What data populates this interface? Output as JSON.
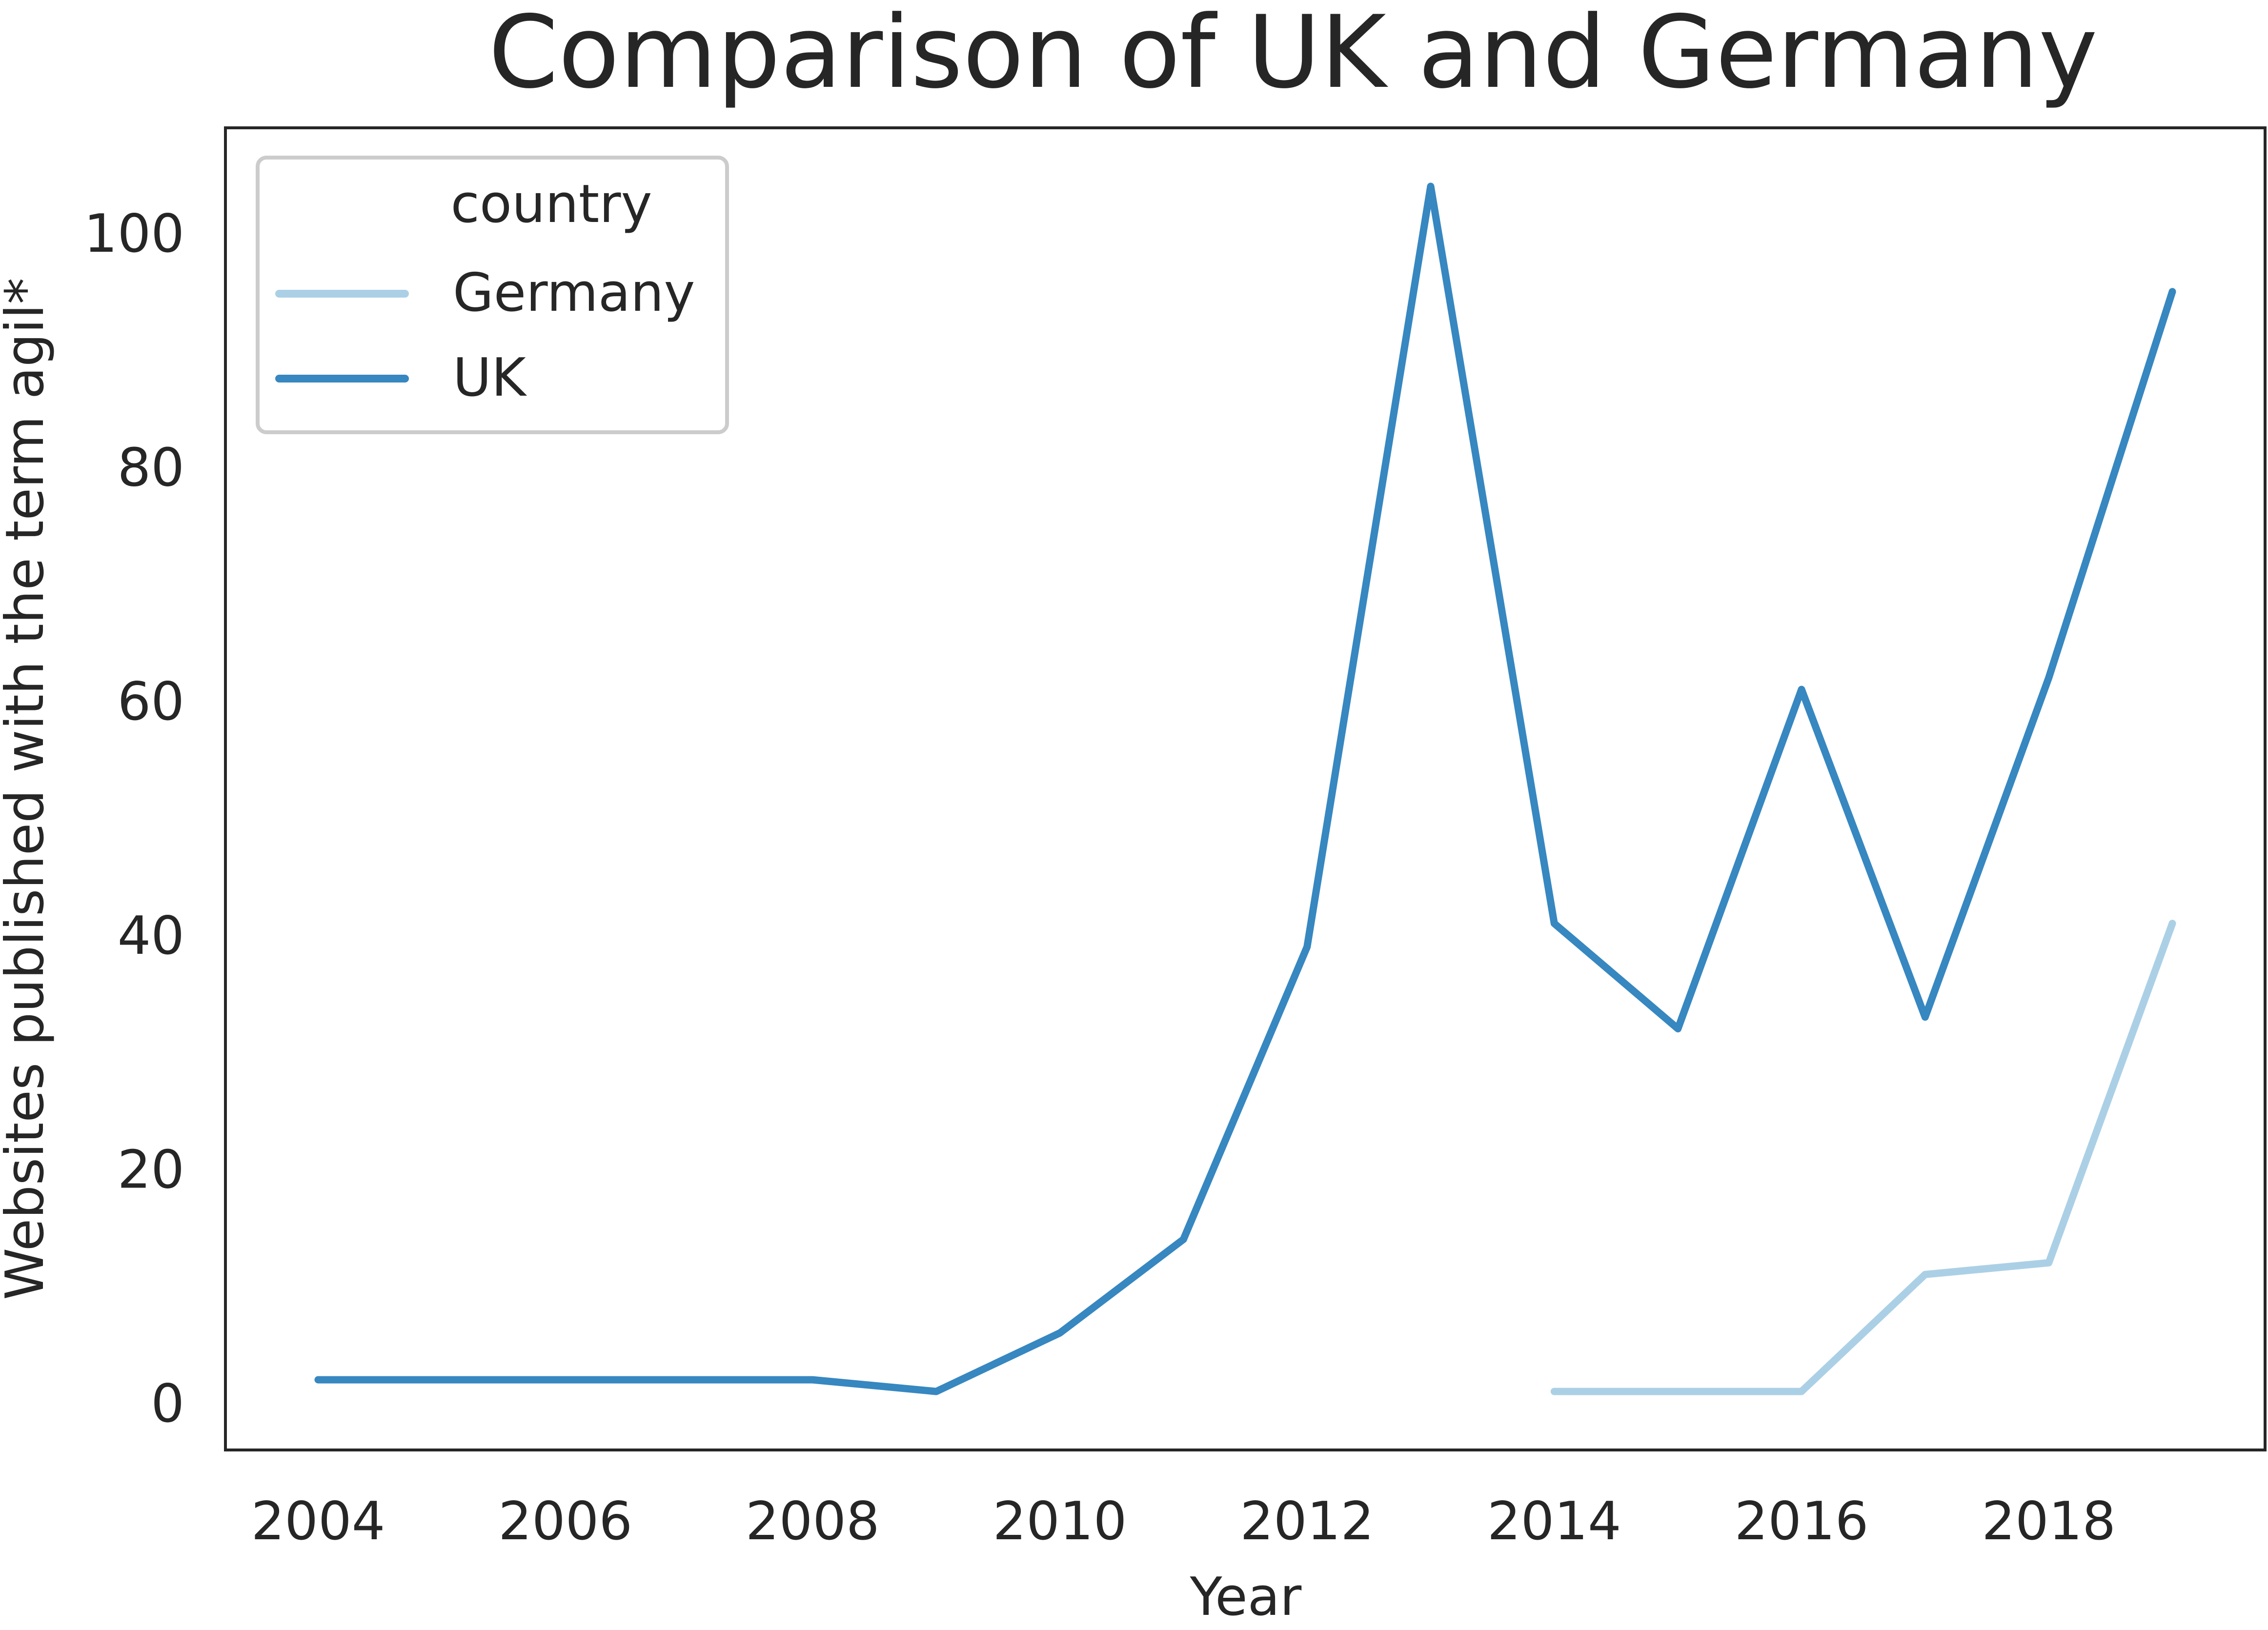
{
  "chart_data": {
    "type": "line",
    "title": "Comparison of UK and Germany",
    "xlabel": "Year",
    "ylabel": "Websites published with the term agil*",
    "xlim": [
      2003.25,
      2019.75
    ],
    "ylim": [
      -4,
      109
    ],
    "xticks": [
      2004,
      2006,
      2008,
      2010,
      2012,
      2014,
      2016,
      2018
    ],
    "yticks": [
      0,
      20,
      40,
      60,
      80,
      100
    ],
    "grid": false,
    "legend": {
      "title": "country",
      "placement": "top-left"
    },
    "series": [
      {
        "name": "Germany",
        "color": "#abd0e6",
        "x": [
          2014,
          2015,
          2016,
          2017,
          2018,
          2019
        ],
        "y": [
          1,
          1,
          1,
          11,
          12,
          41
        ]
      },
      {
        "name": "UK",
        "color": "#3787c0",
        "x": [
          2004,
          2005,
          2006,
          2007,
          2008,
          2009,
          2010,
          2011,
          2012,
          2013,
          2014,
          2015,
          2016,
          2017,
          2018,
          2019
        ],
        "y": [
          2,
          2,
          2,
          2,
          2,
          1,
          6,
          14,
          39,
          104,
          41,
          32,
          61,
          33,
          62,
          95
        ]
      }
    ]
  }
}
